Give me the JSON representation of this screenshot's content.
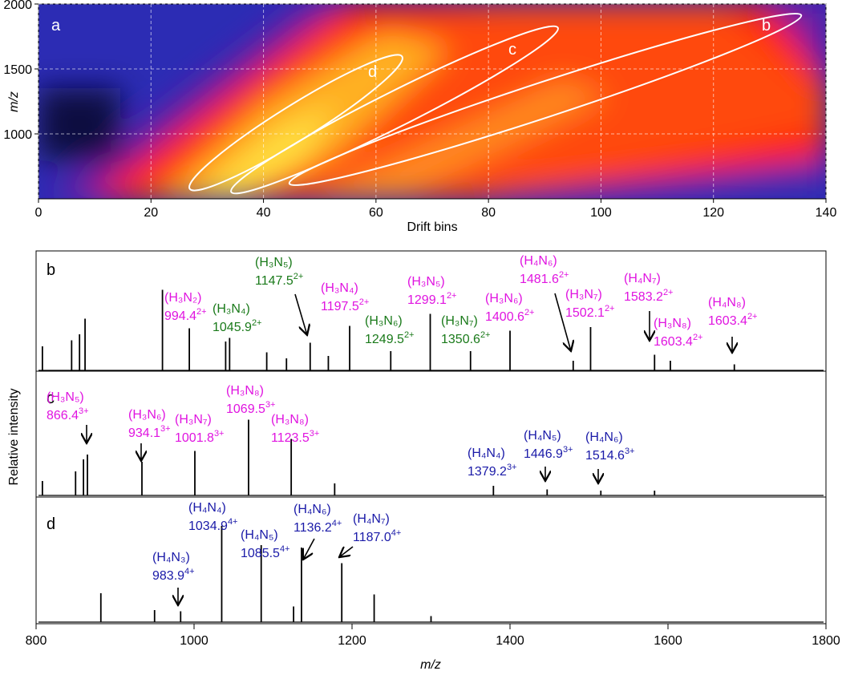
{
  "chart_data": [
    {
      "type": "heatmap",
      "panel_label": "a",
      "xlabel": "Drift bins",
      "ylabel": "m/z",
      "xlim": [
        0,
        140
      ],
      "xticks": [
        0,
        20,
        40,
        60,
        80,
        100,
        120,
        140
      ],
      "ylim": [
        500,
        2000
      ],
      "yticks": [
        1000,
        1500,
        2000
      ],
      "grid": true,
      "regions": [
        "b",
        "c",
        "d"
      ]
    },
    {
      "type": "spectrum",
      "xlabel": "m/z",
      "ylabel": "Relative intensity",
      "xlim": [
        800,
        1800
      ],
      "xticks": [
        800,
        1000,
        1200,
        1400,
        1600,
        1800
      ],
      "ylim": [
        0,
        1
      ],
      "panels": [
        {
          "label": "b",
          "x": [
            808,
            845,
            855,
            862,
            960,
            994,
            1040,
            1045,
            1092,
            1117,
            1147,
            1170,
            1197,
            1249,
            1299,
            1350,
            1400,
            1480,
            1502,
            1583,
            1603,
            1684
          ],
          "values": [
            0.2,
            0.25,
            0.3,
            0.43,
            0.67,
            0.35,
            0.24,
            0.27,
            0.15,
            0.1,
            0.23,
            0.12,
            0.37,
            0.16,
            0.47,
            0.16,
            0.33,
            0.08,
            0.36,
            0.13,
            0.08,
            0.05
          ],
          "annotations": [
            {
              "formula": "(H₃N₂)",
              "mz": "994.4",
              "charge": "2+",
              "color": "#e014e0"
            },
            {
              "formula": "(H₃N₄)",
              "mz": "1045.9",
              "charge": "2+",
              "color": "#1a7a1a"
            },
            {
              "formula": "(H₃N₅)",
              "mz": "1147.5",
              "charge": "2+",
              "color": "#1a7a1a"
            },
            {
              "formula": "(H₃N₄)",
              "mz": "1197.5",
              "charge": "2+",
              "color": "#e014e0"
            },
            {
              "formula": "(H₃N₅)",
              "mz": "1299.1",
              "charge": "2+",
              "color": "#e014e0"
            },
            {
              "formula": "(H₃N₆)",
              "mz": "1249.5",
              "charge": "2+",
              "color": "#1a7a1a"
            },
            {
              "formula": "(H₃N₇)",
              "mz": "1350.6",
              "charge": "2+",
              "color": "#1a7a1a"
            },
            {
              "formula": "(H₃N₆)",
              "mz": "1400.6",
              "charge": "2+",
              "color": "#e014e0"
            },
            {
              "formula": "(H₄N₆)",
              "mz": "1481.6",
              "charge": "2+",
              "color": "#e014e0"
            },
            {
              "formula": "(H₃N₇)",
              "mz": "1502.1",
              "charge": "2+",
              "color": "#e014e0"
            },
            {
              "formula": "(H₄N₇)",
              "mz": "1583.2",
              "charge": "2+",
              "color": "#e014e0"
            },
            {
              "formula": "(H₃N₈)",
              "mz": "1603.4",
              "charge": "2+",
              "color": "#e014e0"
            },
            {
              "formula": "(H₄N₈)",
              "mz": "1603.4",
              "charge": "2+",
              "color": "#e014e0"
            }
          ]
        },
        {
          "label": "c",
          "x": [
            808,
            850,
            860,
            865,
            934,
            1001,
            1069,
            1123,
            1178,
            1379,
            1447,
            1515,
            1583
          ],
          "values": [
            0.12,
            0.2,
            0.3,
            0.34,
            0.28,
            0.37,
            0.63,
            0.47,
            0.1,
            0.08,
            0.05,
            0.04,
            0.04
          ],
          "annotations": [
            {
              "formula": "(H₃N₅)",
              "mz": "866.4",
              "charge": "3+",
              "color": "#e014e0"
            },
            {
              "formula": "(H₃N₆)",
              "mz": "934.1",
              "charge": "3+",
              "color": "#e014e0"
            },
            {
              "formula": "(H₃N₇)",
              "mz": "1001.8",
              "charge": "3+",
              "color": "#e014e0"
            },
            {
              "formula": "(H₃N₈)",
              "mz": "1069.5",
              "charge": "3+",
              "color": "#e014e0"
            },
            {
              "formula": "(H₃N₈)",
              "mz": "1123.5",
              "charge": "3+",
              "color": "#e014e0"
            },
            {
              "formula": "(H₄N₄)",
              "mz": "1379.2",
              "charge": "3+",
              "color": "#1a1aa8"
            },
            {
              "formula": "(H₄N₅)",
              "mz": "1446.9",
              "charge": "3+",
              "color": "#1a1aa8"
            },
            {
              "formula": "(H₄N₆)",
              "mz": "1514.6",
              "charge": "3+",
              "color": "#1a1aa8"
            }
          ]
        },
        {
          "label": "d",
          "x": [
            882,
            950,
            983,
            1035,
            1085,
            1126,
            1136,
            1187,
            1228,
            1300
          ],
          "values": [
            0.24,
            0.1,
            0.09,
            0.8,
            0.64,
            0.13,
            0.62,
            0.49,
            0.23,
            0.05
          ],
          "annotations": [
            {
              "formula": "(H₄N₃)",
              "mz": "983.9",
              "charge": "4+",
              "color": "#1a1aa8"
            },
            {
              "formula": "(H₄N₄)",
              "mz": "1034.9",
              "charge": "4+",
              "color": "#1a1aa8"
            },
            {
              "formula": "(H₄N₅)",
              "mz": "1085.5",
              "charge": "4+",
              "color": "#1a1aa8"
            },
            {
              "formula": "(H₄N₆)",
              "mz": "1136.2",
              "charge": "4+",
              "color": "#1a1aa8"
            },
            {
              "formula": "(H₄N₇)",
              "mz": "1187.0",
              "charge": "4+",
              "color": "#1a1aa8"
            }
          ]
        }
      ]
    }
  ]
}
